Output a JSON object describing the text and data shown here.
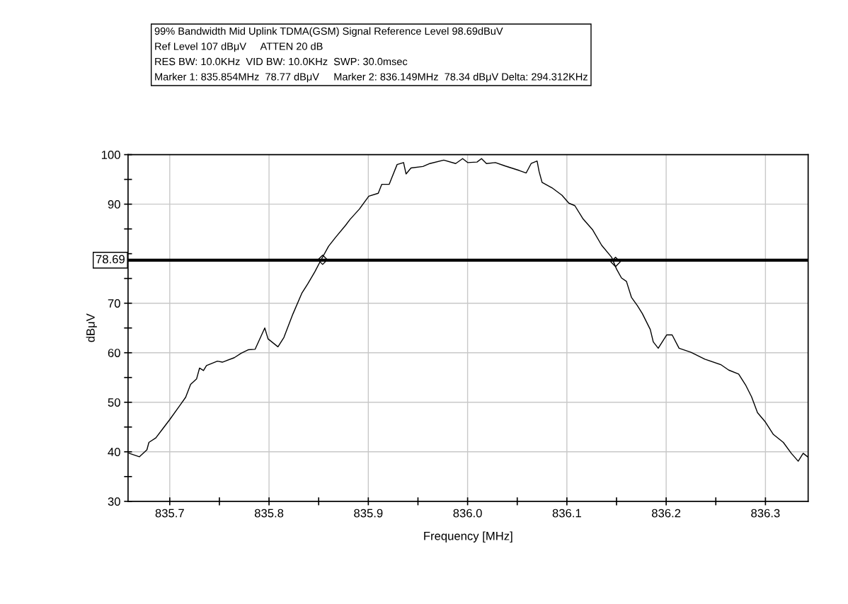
{
  "chart_data": {
    "type": "line",
    "title": "99% Bandwidth Mid Uplink TDMA(GSM) Signal Reference Level 98.69dBuV",
    "annotations": [
      "Ref Level 107 dBμV     ATTEN 20 dB",
      "RES BW: 10.0KHz  VID BW: 10.0KHz  SWP: 30.0msec",
      "Marker 1: 835.854MHz  78.77 dBμV     Marker 2: 836.149MHz  78.34 dBμV Delta: 294.312KHz"
    ],
    "xlabel": "Frequency [MHz]",
    "ylabel": "dBμV",
    "xlim": [
      835.658,
      836.343
    ],
    "ylim": [
      30,
      100
    ],
    "xticks": [
      835.7,
      {
        "value": 835.75,
        "label": null
      },
      835.8,
      {
        "value": 835.85,
        "label": null
      },
      835.9,
      {
        "value": 835.95,
        "label": null
      },
      {
        "value": 836.0,
        "label": "836.0"
      },
      {
        "value": 836.05,
        "label": null
      },
      836.1,
      {
        "value": 836.15,
        "label": null
      },
      836.2,
      {
        "value": 836.25,
        "label": null
      },
      836.3
    ],
    "yticks": [
      30,
      {
        "value": 35,
        "label": null
      },
      40,
      {
        "value": 45,
        "label": null
      },
      50,
      {
        "value": 55,
        "label": null
      },
      60,
      {
        "value": 65,
        "label": null
      },
      70,
      {
        "value": 75,
        "label": null
      },
      {
        "value": 80,
        "label": null
      },
      {
        "value": 85,
        "label": null
      },
      90,
      {
        "value": 95,
        "label": null
      },
      100
    ],
    "grid": true,
    "legend": false,
    "ref_lines": [
      {
        "axis": "y",
        "value": 78.69,
        "label": "78.69",
        "color": "#000000"
      }
    ],
    "series": [
      {
        "color": "#000000",
        "marker": "none",
        "line_style": "solid",
        "x": [
          835.659,
          835.6695,
          835.677,
          835.679,
          835.686,
          835.692,
          835.7,
          835.71,
          835.716,
          835.721,
          835.727,
          835.73,
          835.734,
          835.737,
          835.748,
          835.753,
          835.765,
          835.772,
          835.779,
          835.786,
          835.7957,
          835.799,
          835.809,
          835.815,
          835.824,
          835.833,
          835.839,
          835.846,
          835.852,
          835.86,
          835.867,
          835.877,
          835.8815,
          835.891,
          835.9005,
          835.91,
          835.9135,
          835.921,
          835.929,
          835.9355,
          835.938,
          835.943,
          835.955,
          835.962,
          835.976,
          835.988,
          835.995,
          836.0,
          836.0095,
          836.014,
          836.019,
          836.028,
          836.038,
          836.052,
          836.059,
          836.064,
          836.07,
          836.072,
          836.075,
          836.085,
          836.095,
          836.102,
          836.108,
          836.116,
          836.126,
          836.135,
          836.145,
          836.15,
          836.155,
          836.16,
          836.165,
          836.171,
          836.176,
          836.184,
          836.187,
          836.192,
          836.2005,
          836.206,
          836.213,
          836.225,
          836.239,
          836.255,
          836.263,
          836.273,
          836.28,
          836.286,
          836.292,
          836.3,
          836.308,
          836.318,
          836.326,
          836.333,
          836.338,
          836.343
        ],
        "values": [
          39.7,
          39.0,
          40.4,
          41.9,
          42.8,
          44.4,
          46.5,
          49.3,
          51.0,
          53.6,
          54.7,
          56.9,
          56.4,
          57.4,
          58.3,
          58.1,
          59.0,
          59.9,
          60.6,
          60.7,
          65.0,
          62.8,
          61.2,
          63.1,
          67.8,
          72.0,
          73.9,
          76.3,
          78.6,
          81.5,
          83.3,
          85.7,
          86.9,
          89.0,
          91.6,
          92.2,
          94.0,
          94.0,
          98.0,
          98.4,
          96.1,
          97.3,
          97.6,
          98.2,
          98.9,
          98.2,
          99.2,
          98.4,
          98.5,
          99.2,
          98.2,
          98.4,
          97.7,
          96.8,
          96.3,
          98.2,
          98.7,
          96.6,
          94.4,
          93.3,
          91.8,
          90.2,
          89.7,
          87.1,
          84.8,
          81.7,
          79.3,
          76.9,
          75.1,
          74.4,
          71.2,
          69.5,
          67.9,
          64.7,
          62.2,
          60.9,
          63.6,
          63.6,
          60.9,
          60.1,
          58.7,
          57.6,
          56.5,
          55.7,
          53.5,
          51.1,
          47.9,
          46.0,
          43.5,
          41.9,
          39.7,
          38.1,
          39.7,
          38.9
        ]
      },
      {
        "type": "scatter",
        "color": "#000000",
        "marker": "diamond",
        "x": [
          835.854,
          836.149
        ],
        "values": [
          78.77,
          78.34
        ]
      }
    ]
  }
}
